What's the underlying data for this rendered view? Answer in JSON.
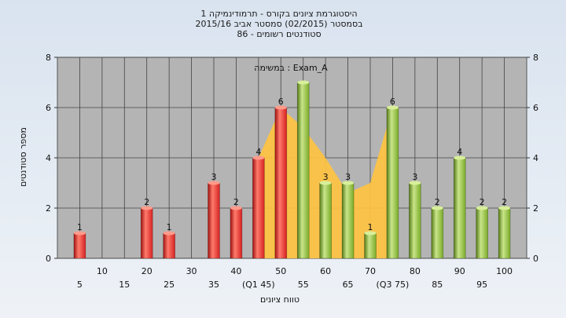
{
  "title_lines": [
    "היסטוגרמת ציונים בקורס - תרמודינמיקה 1",
    "בסמסטר  (02/2015)  סמסטר אביב 2015/16",
    "סטודנטים רשומים - 86"
  ],
  "colors": {
    "background": "#d9e3ef",
    "plot_bg": "#b4b4b4",
    "fail_bar": "#d42222",
    "pass_bar": "#7aab28",
    "area": "#ffc341",
    "grid": "#444444"
  },
  "chart_data": {
    "type": "bar",
    "annotation": "במשימה : Exam_A",
    "xlabel": "טווח ציונים",
    "ylabel": "מספר סטודנטים",
    "ylim": [
      0,
      8
    ],
    "yticks": [
      0,
      2,
      4,
      6,
      8
    ],
    "grid": true,
    "x_ticks": [
      {
        "value": 5,
        "label": "5",
        "row": 2
      },
      {
        "value": 10,
        "label": "10",
        "row": 1
      },
      {
        "value": 15,
        "label": "15",
        "row": 2
      },
      {
        "value": 20,
        "label": "20",
        "row": 1
      },
      {
        "value": 25,
        "label": "25",
        "row": 2
      },
      {
        "value": 30,
        "label": "30",
        "row": 1
      },
      {
        "value": 35,
        "label": "35",
        "row": 2
      },
      {
        "value": 40,
        "label": "40",
        "row": 1
      },
      {
        "value": 45,
        "label": "(Q1 45)",
        "row": 2
      },
      {
        "value": 50,
        "label": "50",
        "row": 1
      },
      {
        "value": 55,
        "label": "55",
        "row": 2
      },
      {
        "value": 60,
        "label": "60",
        "row": 1
      },
      {
        "value": 65,
        "label": "65",
        "row": 2
      },
      {
        "value": 70,
        "label": "70",
        "row": 1
      },
      {
        "value": 75,
        "label": "(Q3 75)",
        "row": 2
      },
      {
        "value": 80,
        "label": "80",
        "row": 1
      },
      {
        "value": 85,
        "label": "85",
        "row": 2
      },
      {
        "value": 90,
        "label": "90",
        "row": 1
      },
      {
        "value": 95,
        "label": "95",
        "row": 2
      },
      {
        "value": 100,
        "label": "100",
        "row": 1
      }
    ],
    "bars": [
      {
        "x": 5,
        "value": 1,
        "group": "fail"
      },
      {
        "x": 20,
        "value": 2,
        "group": "fail"
      },
      {
        "x": 25,
        "value": 1,
        "group": "fail"
      },
      {
        "x": 35,
        "value": 3,
        "group": "fail"
      },
      {
        "x": 40,
        "value": 2,
        "group": "fail"
      },
      {
        "x": 45,
        "value": 4,
        "group": "fail"
      },
      {
        "x": 50,
        "value": 6,
        "group": "fail"
      },
      {
        "x": 55,
        "value": 7,
        "group": "pass",
        "show_label": false
      },
      {
        "x": 60,
        "value": 3,
        "group": "pass"
      },
      {
        "x": 65,
        "value": 3,
        "group": "pass"
      },
      {
        "x": 70,
        "value": 1,
        "group": "pass"
      },
      {
        "x": 75,
        "value": 6,
        "group": "pass"
      },
      {
        "x": 80,
        "value": 3,
        "group": "pass"
      },
      {
        "x": 85,
        "value": 2,
        "group": "pass"
      },
      {
        "x": 90,
        "value": 4,
        "group": "pass"
      },
      {
        "x": 95,
        "value": 2,
        "group": "pass"
      },
      {
        "x": 100,
        "value": 2,
        "group": "pass"
      }
    ],
    "quartile_area": [
      {
        "x": 45,
        "y": 4
      },
      {
        "x": 50,
        "y": 6
      },
      {
        "x": 55,
        "y": 5.2
      },
      {
        "x": 60,
        "y": 4
      },
      {
        "x": 65,
        "y": 2.6
      },
      {
        "x": 70,
        "y": 3
      },
      {
        "x": 75,
        "y": 6
      }
    ]
  }
}
